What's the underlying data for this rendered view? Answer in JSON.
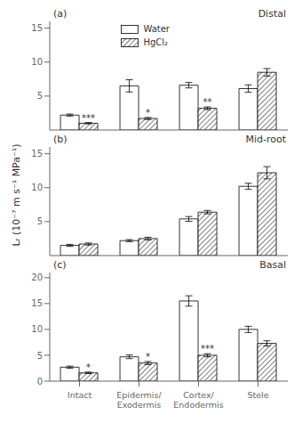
{
  "chart_data": [
    {
      "type": "bar",
      "title": "(a)",
      "subtitle": "Distal",
      "categories": [
        "Intact",
        "Epidermis/\nExodermis",
        "Cortex/\nEndodermis",
        "Stele"
      ],
      "series": [
        {
          "name": "Water",
          "color": "white",
          "values": [
            2.2,
            6.5,
            6.6,
            6.1
          ],
          "errors": [
            0.15,
            0.9,
            0.4,
            0.55
          ]
        },
        {
          "name": "HgCl₂",
          "color": "white",
          "values": [
            1.0,
            1.7,
            3.2,
            8.5
          ],
          "errors": [
            0.1,
            0.15,
            0.2,
            0.55
          ],
          "annotations": [
            "***",
            "*",
            "**",
            null
          ]
        }
      ],
      "ylim": [
        0,
        16
      ],
      "yticks": [
        0,
        5,
        10,
        15
      ],
      "legend": "upper left",
      "grid": false,
      "tick_labels": "y"
    },
    {
      "type": "bar",
      "title": "(b)",
      "subtitle": "Mid-root",
      "ylabel": "Lᵣ (10⁻⁷ m s⁻¹ MPa⁻¹)",
      "categories": [
        "Intact",
        "Epidermis/\nExodermis",
        "Cortex/\nEndodermis",
        "Stele"
      ],
      "series": [
        {
          "name": "Water",
          "color": "white",
          "values": [
            1.5,
            2.2,
            5.4,
            10.2
          ],
          "errors": [
            0.15,
            0.15,
            0.35,
            0.45
          ]
        },
        {
          "name": "HgCl₂",
          "color": "white",
          "values": [
            1.7,
            2.5,
            6.4,
            12.2
          ],
          "errors": [
            0.15,
            0.2,
            0.25,
            0.9
          ]
        }
      ],
      "ylim": [
        0,
        16
      ],
      "yticks": [
        0,
        5,
        10,
        15
      ],
      "grid": false,
      "tick_labels": "y"
    },
    {
      "type": "bar",
      "title": "(c)",
      "subtitle": "Basal",
      "categories": [
        "Intact",
        "Epidermis/\nExodermis",
        "Cortex/\nEndodermis",
        "Stele"
      ],
      "series": [
        {
          "name": "Water",
          "color": "white",
          "values": [
            2.7,
            4.7,
            15.5,
            10.0
          ],
          "errors": [
            0.2,
            0.35,
            1.0,
            0.6
          ]
        },
        {
          "name": "HgCl₂",
          "color": "white",
          "values": [
            1.6,
            3.5,
            5.0,
            7.3
          ],
          "errors": [
            0.15,
            0.3,
            0.3,
            0.5
          ],
          "annotations": [
            "*",
            "*",
            "***",
            null
          ]
        }
      ],
      "ylim": [
        0,
        21
      ],
      "yticks": [
        0,
        5,
        10,
        15,
        20
      ],
      "grid": false
    }
  ]
}
